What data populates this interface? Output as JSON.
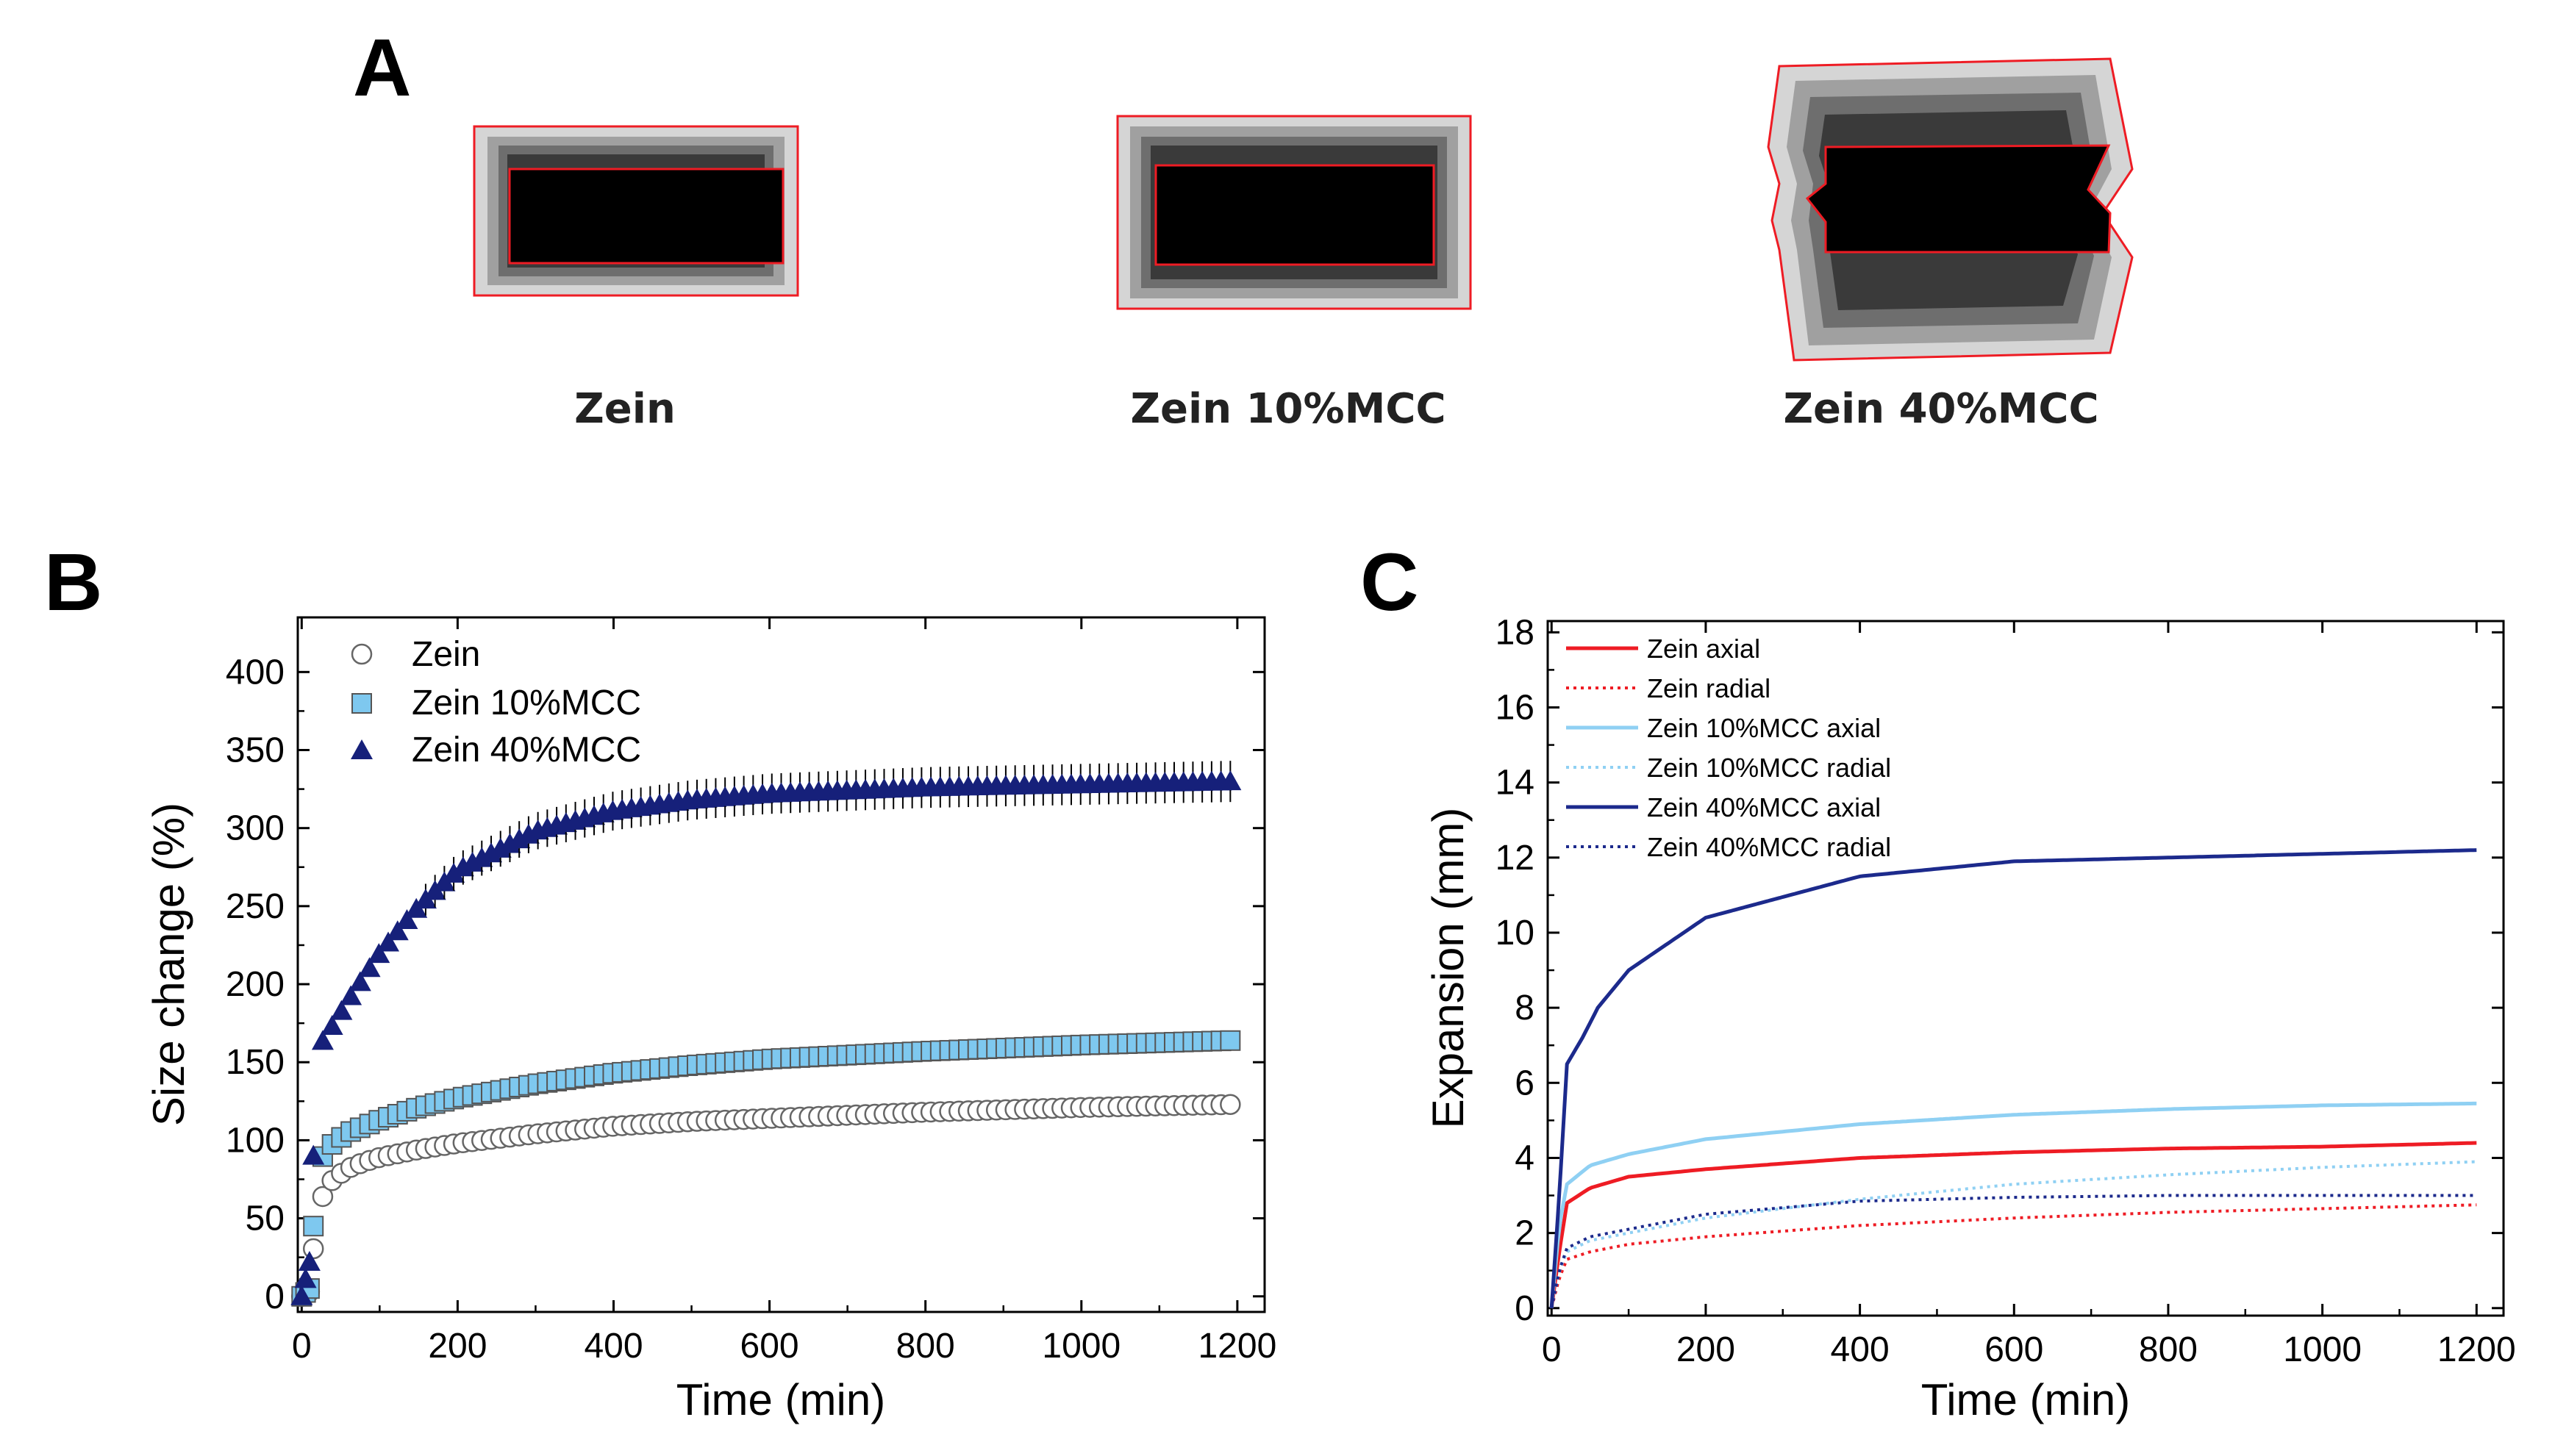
{
  "panel_a": {
    "letter": "A",
    "samples": [
      {
        "label": "Zein"
      },
      {
        "label": "Zein 10%MCC"
      },
      {
        "label": "Zein 40%MCC"
      }
    ]
  },
  "colors": {
    "zein": "#ffffff",
    "mcc10": "#7ec8ef",
    "mcc40": "#16207a",
    "zein_line": "#ee1c24",
    "mcc10_line": "#8fd0f3",
    "mcc40_line": "#1c2a8c",
    "outline": "#ee1c24"
  },
  "chart_data": [
    {
      "panel": "B",
      "type": "scatter",
      "xlabel": "Time (min)",
      "ylabel": "Size change (%)",
      "xlim": [
        -5,
        1235
      ],
      "ylim": [
        -10,
        435
      ],
      "xticks": [
        0,
        200,
        400,
        600,
        800,
        1000,
        1200
      ],
      "yticks": [
        0,
        50,
        100,
        150,
        200,
        250,
        300,
        350,
        400
      ],
      "legend_position": "top-left",
      "series": [
        {
          "name": "Zein",
          "marker": "circle",
          "color": "#ffffff",
          "plateau": 123,
          "x": [
            0,
            10,
            20,
            40,
            60,
            80,
            100,
            150,
            200,
            300,
            400,
            500,
            600,
            800,
            1000,
            1200
          ],
          "y": [
            0,
            3,
            58,
            75,
            82,
            86,
            89,
            94,
            98,
            104,
            109,
            112,
            114,
            118,
            121,
            123
          ]
        },
        {
          "name": "Zein 10%MCC",
          "marker": "square",
          "color": "#7ec8ef",
          "plateau": 164,
          "x": [
            0,
            10,
            20,
            40,
            60,
            80,
            100,
            150,
            200,
            300,
            400,
            500,
            600,
            800,
            1000,
            1200
          ],
          "y": [
            0,
            5,
            85,
            98,
            105,
            109,
            113,
            121,
            127,
            136,
            143,
            148,
            152,
            157,
            161,
            164
          ]
        },
        {
          "name": "Zein 40%MCC",
          "marker": "triangle",
          "color": "#16207a",
          "plateau": 330,
          "x": [
            0,
            10,
            20,
            40,
            60,
            80,
            100,
            150,
            200,
            300,
            400,
            500,
            600,
            800,
            1000,
            1200
          ],
          "y": [
            0,
            22,
            158,
            174,
            190,
            205,
            220,
            250,
            273,
            298,
            311,
            318,
            322,
            326,
            328,
            330
          ]
        }
      ]
    },
    {
      "panel": "C",
      "type": "line",
      "xlabel": "Time (min)",
      "ylabel": "Expansion (mm)",
      "xlim": [
        -5,
        1235
      ],
      "ylim": [
        -0.2,
        18.3
      ],
      "xticks": [
        0,
        200,
        400,
        600,
        800,
        1000,
        1200
      ],
      "yticks": [
        0,
        2,
        4,
        6,
        8,
        10,
        12,
        14,
        16,
        18
      ],
      "legend_position": "top-left",
      "series": [
        {
          "name": "Zein axial",
          "style": "solid",
          "color": "#ee1c24",
          "x": [
            0,
            10,
            20,
            50,
            100,
            200,
            400,
            600,
            800,
            1000,
            1200
          ],
          "y": [
            0,
            1.5,
            2.8,
            3.2,
            3.5,
            3.7,
            4.0,
            4.15,
            4.25,
            4.3,
            4.4
          ]
        },
        {
          "name": "Zein radial",
          "style": "dotted",
          "color": "#ee1c24",
          "x": [
            0,
            10,
            20,
            50,
            100,
            200,
            400,
            600,
            800,
            1000,
            1200
          ],
          "y": [
            0,
            0.8,
            1.3,
            1.5,
            1.7,
            1.9,
            2.2,
            2.4,
            2.55,
            2.65,
            2.75
          ]
        },
        {
          "name": "Zein 10%MCC axial",
          "style": "solid",
          "color": "#8fd0f3",
          "x": [
            0,
            10,
            20,
            50,
            100,
            200,
            400,
            600,
            800,
            1000,
            1200
          ],
          "y": [
            0,
            2.2,
            3.3,
            3.8,
            4.1,
            4.5,
            4.9,
            5.15,
            5.3,
            5.4,
            5.45
          ]
        },
        {
          "name": "Zein 10%MCC radial",
          "style": "dotted",
          "color": "#8fd0f3",
          "x": [
            0,
            10,
            20,
            50,
            100,
            200,
            400,
            600,
            800,
            1000,
            1200
          ],
          "y": [
            0,
            1.0,
            1.5,
            1.8,
            2.0,
            2.4,
            2.9,
            3.3,
            3.55,
            3.75,
            3.9
          ]
        },
        {
          "name": "Zein 40%MCC axial",
          "style": "solid",
          "color": "#1c2a8c",
          "x": [
            0,
            10,
            20,
            40,
            60,
            100,
            200,
            400,
            600,
            800,
            1000,
            1200
          ],
          "y": [
            0,
            3.0,
            6.5,
            7.2,
            8.0,
            9.0,
            10.4,
            11.5,
            11.9,
            12.0,
            12.1,
            12.2
          ]
        },
        {
          "name": "Zein 40%MCC radial",
          "style": "dotted",
          "color": "#1c2a8c",
          "x": [
            0,
            10,
            20,
            50,
            100,
            200,
            400,
            600,
            800,
            1000,
            1200
          ],
          "y": [
            0,
            1.0,
            1.6,
            1.9,
            2.1,
            2.5,
            2.85,
            2.95,
            3.0,
            3.0,
            3.0
          ]
        }
      ]
    }
  ]
}
